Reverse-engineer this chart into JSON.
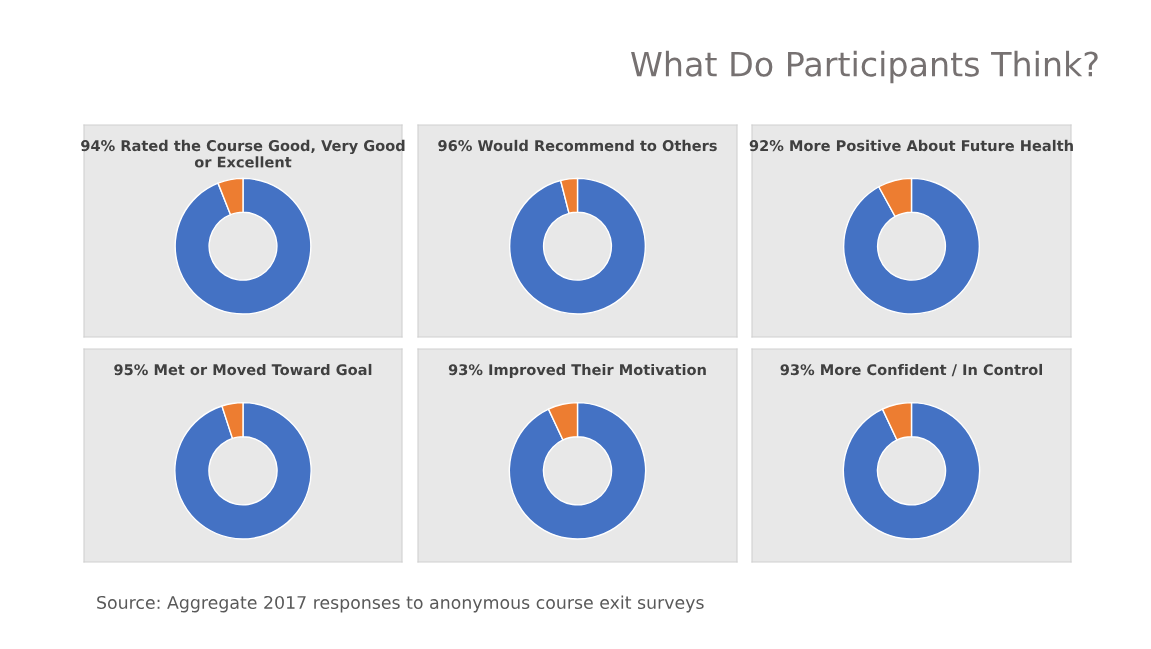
{
  "chart_data": [
    {
      "type": "other",
      "title": "What Do Participants Think?",
      "annotations": [
        "Source: Aggregate 2017 responses to anonymous course exit surveys"
      ]
    },
    {
      "type": "donut",
      "title": "94% Rated the Course Good, Very Good or Excellent",
      "categories": [
        null,
        null
      ],
      "values": [
        94,
        6
      ],
      "colors": [
        "#4472c4",
        "#ed7d31"
      ],
      "legend": false
    },
    {
      "type": "donut",
      "title": "96% Would Recommend to Others",
      "categories": [
        null,
        null
      ],
      "values": [
        96,
        4
      ],
      "colors": [
        "#4472c4",
        "#ed7d31"
      ],
      "legend": false
    },
    {
      "type": "donut",
      "title": "92% More Positive About Future Health",
      "categories": [
        null,
        null
      ],
      "values": [
        92,
        8
      ],
      "colors": [
        "#4472c4",
        "#ed7d31"
      ],
      "legend": false
    },
    {
      "type": "donut",
      "title": "95% Met or Moved Toward Goal",
      "categories": [
        null,
        null
      ],
      "values": [
        95,
        5
      ],
      "colors": [
        "#4472c4",
        "#ed7d31"
      ],
      "legend": false
    },
    {
      "type": "donut",
      "title": "93% Improved Their Motivation",
      "categories": [
        null,
        null
      ],
      "values": [
        93,
        7
      ],
      "colors": [
        "#4472c4",
        "#ed7d31"
      ],
      "legend": false
    },
    {
      "type": "donut",
      "title": "93% More Confident / In Control",
      "categories": [
        null,
        null
      ],
      "values": [
        93,
        7
      ],
      "colors": [
        "#4472c4",
        "#ed7d31"
      ],
      "legend": false
    }
  ]
}
